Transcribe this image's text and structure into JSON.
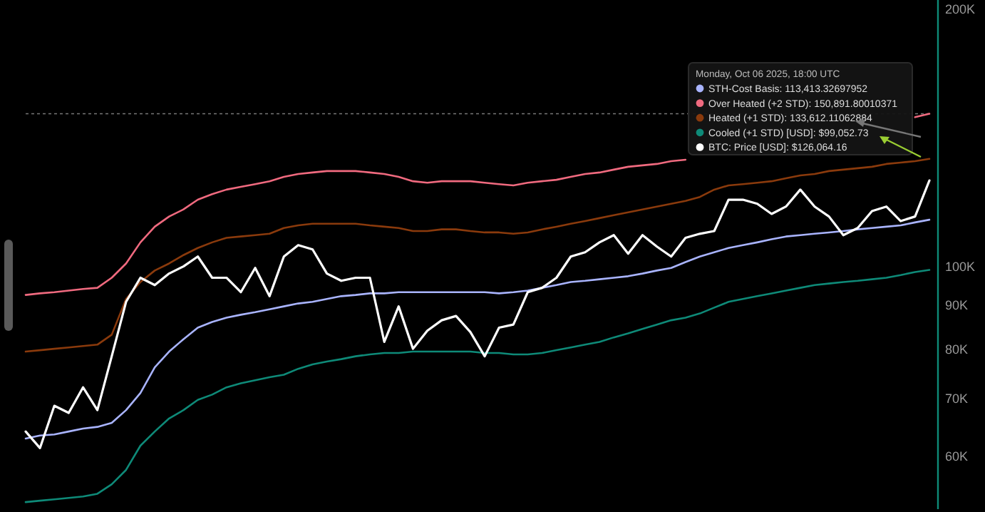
{
  "chart_data": {
    "type": "line",
    "legend_title": "Monday, Oct 06 2025, 18:00 UTC",
    "legend": "top right",
    "log": "y",
    "ylim": [
      52000,
      205000
    ],
    "yticks": [
      {
        "value": 60000,
        "label": "60K"
      },
      {
        "value": 70000,
        "label": "70K"
      },
      {
        "value": 80000,
        "label": "80K"
      },
      {
        "value": 90000,
        "label": "90K"
      },
      {
        "value": 100000,
        "label": "100K"
      },
      {
        "value": 200000,
        "label": "200K"
      }
    ],
    "tick_labels": "y",
    "categories": [
      null,
      null,
      null,
      null,
      null,
      null,
      null,
      null,
      null,
      null,
      null,
      null,
      null,
      null,
      null,
      null,
      null,
      null,
      null,
      null,
      null,
      null,
      null,
      null,
      null,
      null,
      null,
      null,
      null,
      null,
      null,
      null,
      null,
      null,
      null,
      null,
      null,
      null,
      null,
      null,
      null,
      null,
      null,
      null,
      null,
      null,
      null,
      null,
      null,
      null,
      null,
      null,
      null,
      null,
      null,
      null,
      null,
      null,
      null,
      null,
      null,
      null,
      null,
      null
    ],
    "ref_lines": [
      {
        "axis": "y",
        "value": 150891.8,
        "color": "#777777",
        "line_style": "dotted"
      }
    ],
    "series": [
      {
        "name": "STH-Cost Basis: 113,413.32697952",
        "color": "#a9b4ff",
        "values": [
          62900,
          63400,
          63600,
          64100,
          64600,
          64900,
          65600,
          67900,
          71100,
          76200,
          79500,
          82200,
          84800,
          86100,
          87100,
          87800,
          88400,
          89100,
          89800,
          90500,
          90900,
          91600,
          92300,
          92600,
          93000,
          93000,
          93300,
          93300,
          93300,
          93300,
          93300,
          93300,
          93300,
          93000,
          93300,
          93700,
          94400,
          95100,
          95900,
          96200,
          96600,
          97000,
          97400,
          98100,
          98900,
          99600,
          101200,
          102700,
          103900,
          105100,
          105900,
          106700,
          107600,
          108400,
          108800,
          109200,
          109600,
          110000,
          110500,
          110900,
          111300,
          111700,
          112600,
          113413.32697952
        ]
      },
      {
        "name": "Over Heated (+2 STD): 150,891.80010371",
        "color": "#f06a7f",
        "values": [
          92600,
          93000,
          93300,
          93700,
          94100,
          94400,
          97000,
          100800,
          106700,
          111300,
          114400,
          116600,
          119700,
          121500,
          123000,
          123900,
          124800,
          125800,
          127300,
          128300,
          128800,
          129300,
          129300,
          129300,
          128800,
          128300,
          127300,
          125800,
          125300,
          125800,
          125800,
          125800,
          125300,
          124800,
          124400,
          125300,
          125800,
          126300,
          127300,
          128300,
          128800,
          129800,
          130800,
          131300,
          131800,
          132800,
          133300,
          null,
          null,
          null,
          null,
          null,
          null,
          null,
          null,
          null,
          null,
          null,
          null,
          null,
          null,
          null,
          149500,
          150891.80010371
        ]
      },
      {
        "name": "Heated (+1 STD): 133,612.11062884",
        "color": "#8a3a0c",
        "values": [
          79500,
          79800,
          80100,
          80400,
          80700,
          81000,
          83200,
          91600,
          95900,
          98900,
          100800,
          103100,
          105100,
          106700,
          108000,
          108400,
          108800,
          109200,
          110900,
          111700,
          112200,
          112200,
          112200,
          112200,
          111700,
          111300,
          110900,
          110000,
          110000,
          110500,
          110500,
          110000,
          109600,
          109600,
          109200,
          109600,
          110500,
          111300,
          112200,
          113000,
          113900,
          114800,
          115700,
          116600,
          117500,
          118400,
          119300,
          120600,
          123000,
          124400,
          124800,
          125300,
          125800,
          126800,
          127800,
          128300,
          129300,
          129800,
          130300,
          130800,
          131800,
          132300,
          132800,
          133612.11062884
        ]
      },
      {
        "name": "Cooled (+1 STD) [USD]: $99,052.73",
        "color": "#0e8a78",
        "values": [
          53000,
          53200,
          53400,
          53600,
          53800,
          54200,
          55600,
          57800,
          61700,
          64100,
          66400,
          67900,
          69800,
          70800,
          72200,
          73000,
          73600,
          74200,
          74700,
          75900,
          76800,
          77400,
          77900,
          78500,
          78900,
          79200,
          79200,
          79500,
          79500,
          79500,
          79500,
          79500,
          79200,
          79200,
          78900,
          78900,
          79200,
          79800,
          80400,
          81000,
          81600,
          82600,
          83500,
          84500,
          85500,
          86500,
          87100,
          88100,
          89500,
          90900,
          91600,
          92300,
          93000,
          93700,
          94400,
          95100,
          95500,
          95900,
          96200,
          96600,
          97000,
          97700,
          98500,
          99052.73
        ]
      },
      {
        "name": "BTC: Price [USD]: $126,064.16",
        "color": "#ffffff",
        "values": [
          64100,
          61300,
          68700,
          67400,
          72200,
          67900,
          78500,
          90900,
          97000,
          95100,
          98100,
          100000,
          102700,
          97000,
          97000,
          93300,
          99600,
          92300,
          102700,
          105900,
          104700,
          98100,
          96200,
          97000,
          97000,
          81600,
          89800,
          80100,
          84100,
          86500,
          87500,
          83800,
          78500,
          84800,
          85500,
          93300,
          94400,
          97000,
          102700,
          103900,
          106700,
          108800,
          103500,
          108800,
          105500,
          102700,
          108000,
          109200,
          110000,
          119700,
          119700,
          118400,
          115200,
          117500,
          123000,
          117500,
          114400,
          108800,
          110900,
          116100,
          117500,
          113000,
          114400,
          126064.16
        ]
      }
    ]
  }
}
